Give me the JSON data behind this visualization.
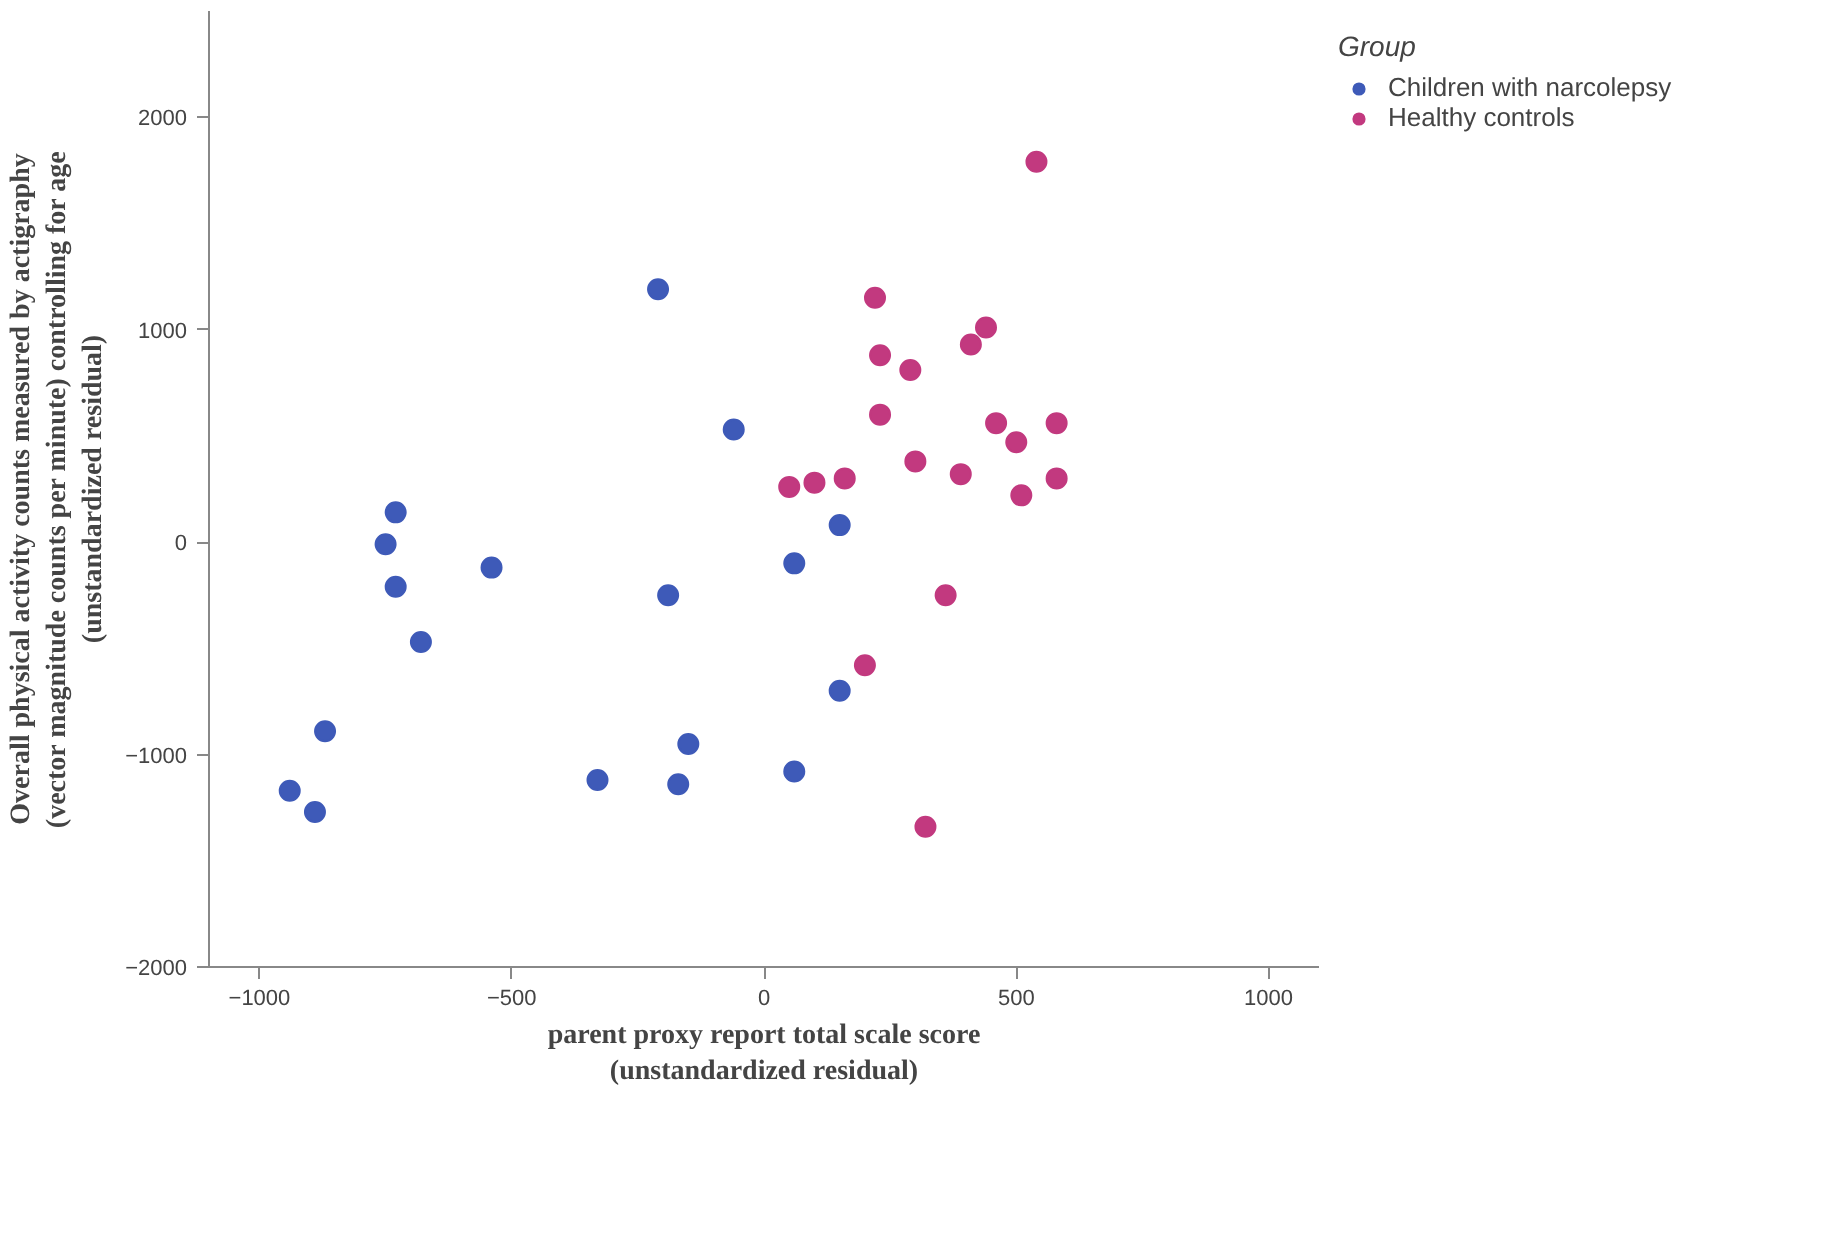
{
  "chart_data": {
    "type": "scatter",
    "xlabel": "parent proxy report total scale score\n(unstandardized residual)",
    "ylabel": "Overall physical activity counts measured by actigraphy\n(vector magnitude counts per minute) controlling for age\n(unstandardized residual)",
    "legend_title": "Group",
    "legend": "top right",
    "grid": false,
    "marker": "circle",
    "xlim": [
      -1100,
      1100
    ],
    "ylim": [
      -2000,
      2500
    ],
    "xticks": [
      -1000,
      -500,
      0,
      500,
      1000
    ],
    "yticks": [
      -2000,
      -1000,
      0,
      1000,
      2000
    ],
    "series": [
      {
        "name": "Children with narcolepsy",
        "color": "#3e5ab8",
        "x": [
          -210,
          -60,
          -730,
          -750,
          -730,
          -540,
          -680,
          -870,
          -940,
          -890,
          -330,
          -170,
          -150,
          -190,
          60,
          150,
          150,
          60
        ],
        "values": [
          1190,
          530,
          140,
          -10,
          -210,
          -120,
          -470,
          -890,
          -1170,
          -1270,
          -1120,
          -1140,
          -950,
          -250,
          -100,
          80,
          -700,
          -1080
        ]
      },
      {
        "name": "Healthy controls",
        "color": "#c2397f",
        "x": [
          540,
          220,
          230,
          290,
          440,
          410,
          230,
          460,
          580,
          500,
          300,
          390,
          580,
          510,
          50,
          100,
          160,
          360,
          200,
          320
        ],
        "values": [
          1790,
          1150,
          880,
          810,
          1010,
          930,
          600,
          560,
          560,
          470,
          380,
          320,
          300,
          220,
          260,
          280,
          300,
          -250,
          -580,
          -1340
        ]
      }
    ]
  }
}
